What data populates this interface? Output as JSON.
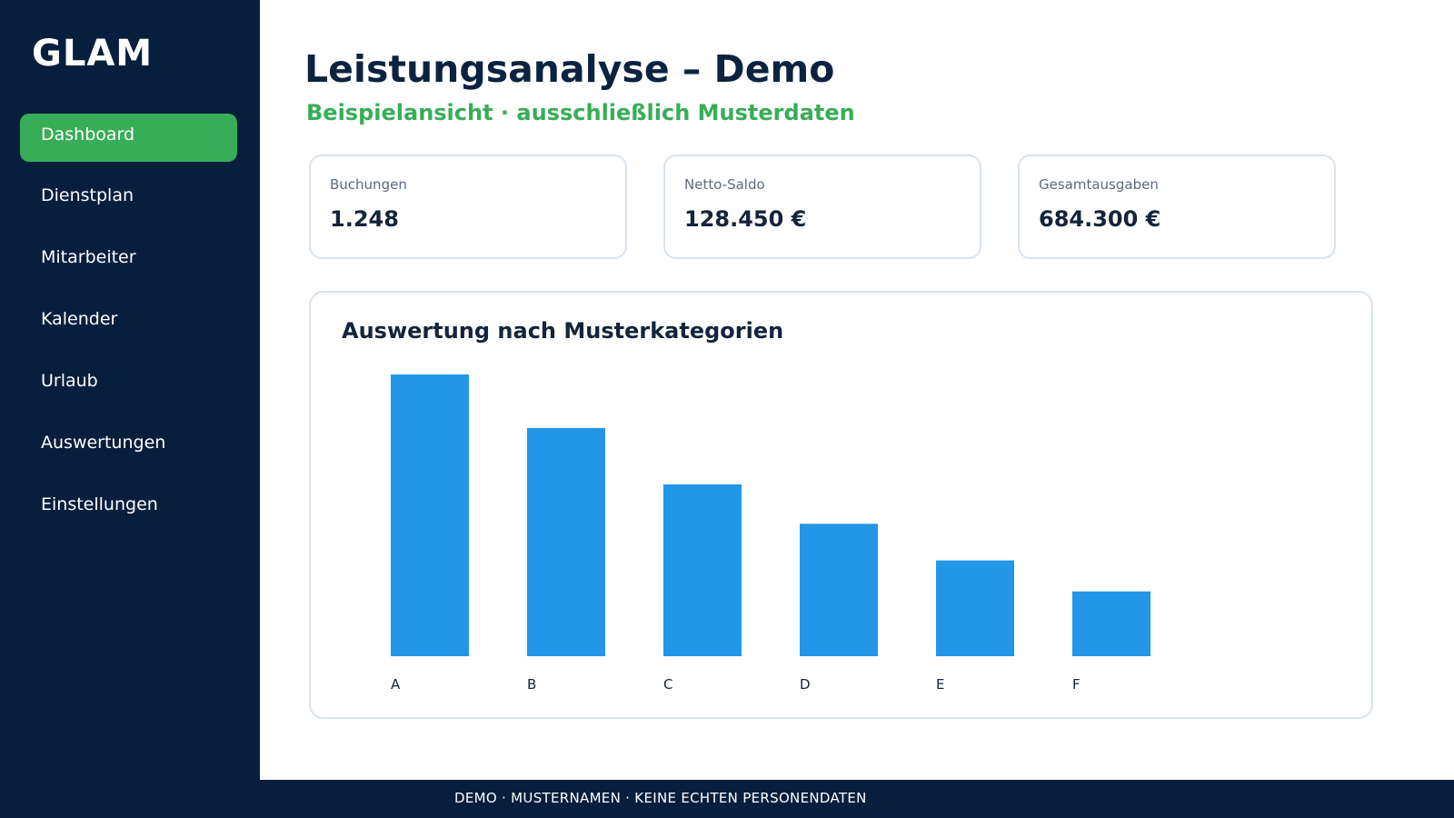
{
  "sidebar": {
    "brand": "GLAM",
    "items": [
      {
        "label": "Dashboard",
        "active": true
      },
      {
        "label": "Dienstplan",
        "active": false
      },
      {
        "label": "Mitarbeiter",
        "active": false
      },
      {
        "label": "Kalender",
        "active": false
      },
      {
        "label": "Urlaub",
        "active": false
      },
      {
        "label": "Auswertungen",
        "active": false
      },
      {
        "label": "Einstellungen",
        "active": false
      }
    ]
  },
  "header": {
    "title": "Leistungsanalyse – Demo",
    "subtitle": "Beispielansicht · ausschließlich Musterdaten"
  },
  "kpis": [
    {
      "label": "Buchungen",
      "value": "1.248"
    },
    {
      "label": "Netto-Saldo",
      "value": "128.450 €"
    },
    {
      "label": "Gesamtausgaben",
      "value": "684.300 €"
    }
  ],
  "chart_title": "Auswertung nach Musterkategorien",
  "chart_data": {
    "type": "bar",
    "title": "Auswertung nach Musterkategorien",
    "categories": [
      "A",
      "B",
      "C",
      "D",
      "E",
      "F"
    ],
    "values": [
      100,
      81,
      61,
      47,
      34,
      23
    ],
    "ylim": [
      0,
      100
    ],
    "grid": false,
    "bar_color": "#2496e8"
  },
  "footer": {
    "text": "DEMO · MUSTERNAMEN · KEINE ECHTEN PERSONENDATEN"
  },
  "colors": {
    "sidebar_bg": "#071f3d",
    "accent": "#37ad57",
    "bar": "#2496e8"
  }
}
